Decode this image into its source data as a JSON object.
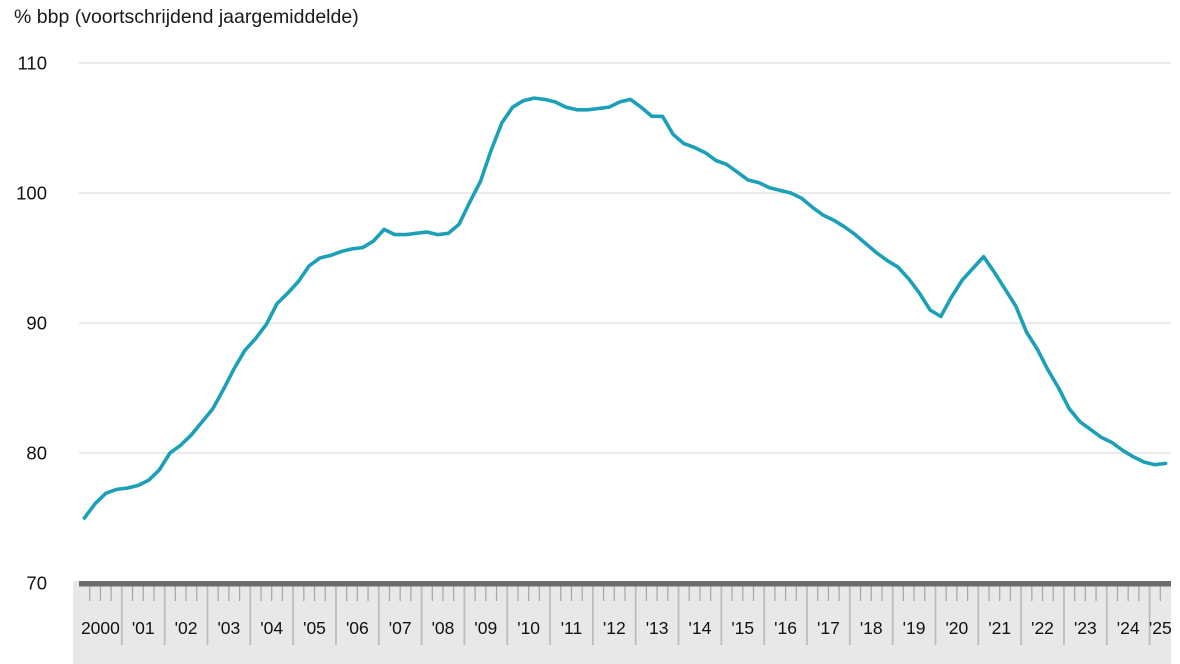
{
  "title": "% bbp (voortschrijdend jaargemiddelde)",
  "chart_data": {
    "type": "line",
    "title": "% bbp (voortschrijdend jaargemiddelde)",
    "ylabel": "% bbp",
    "ylim": [
      70,
      110
    ],
    "y_ticks": [
      110,
      100,
      90,
      80,
      70
    ],
    "grid": true,
    "legend_position": "none",
    "x_axis": {
      "start_year": 2000,
      "frequency": "quarterly",
      "end": "2025Q2",
      "tick_labels": [
        "2000",
        "'01",
        "'02",
        "'03",
        "'04",
        "'05",
        "'06",
        "'07",
        "'08",
        "'09",
        "'10",
        "'11",
        "'12",
        "'13",
        "'14",
        "'15",
        "'16",
        "'17",
        "'18",
        "'19",
        "'20",
        "'21",
        "'22",
        "'23",
        "'24",
        "'25"
      ]
    },
    "series": [
      {
        "name": "% bbp (voortschrijdend jaargemiddelde)",
        "start": "2000Q1",
        "values": [
          75.0,
          76.1,
          76.9,
          77.2,
          77.3,
          77.5,
          77.9,
          78.7,
          80.0,
          80.6,
          81.4,
          82.4,
          83.4,
          84.9,
          86.5,
          87.9,
          88.8,
          89.9,
          91.5,
          92.3,
          93.2,
          94.4,
          95.0,
          95.2,
          95.5,
          95.7,
          95.8,
          96.3,
          97.2,
          96.8,
          96.8,
          96.9,
          97.0,
          96.8,
          96.9,
          97.6,
          99.3,
          100.9,
          103.3,
          105.4,
          106.6,
          107.1,
          107.3,
          107.2,
          107.0,
          106.6,
          106.4,
          106.4,
          106.5,
          106.6,
          107.0,
          107.2,
          106.6,
          105.9,
          105.9,
          104.5,
          103.8,
          103.5,
          103.1,
          102.5,
          102.2,
          101.6,
          101.0,
          100.8,
          100.4,
          100.2,
          100.0,
          99.6,
          98.9,
          98.3,
          97.9,
          97.4,
          96.8,
          96.1,
          95.4,
          94.8,
          94.3,
          93.4,
          92.3,
          91.0,
          90.5,
          92.0,
          93.3,
          94.2,
          95.1,
          93.9,
          92.6,
          91.3,
          89.3,
          88.0,
          86.4,
          85.0,
          83.4,
          82.4,
          81.8,
          81.2,
          80.8,
          80.2,
          79.7,
          79.3,
          79.1,
          79.2
        ]
      }
    ],
    "colors": {
      "line": "#1BA0B8",
      "band": "#E8E8E8",
      "axis_bar": "#6B6B6B",
      "grid": "#D4D4D4",
      "year_separator": "#BDBDBD",
      "quarter_tick": "#A6A6A6",
      "text": "#111111"
    }
  }
}
